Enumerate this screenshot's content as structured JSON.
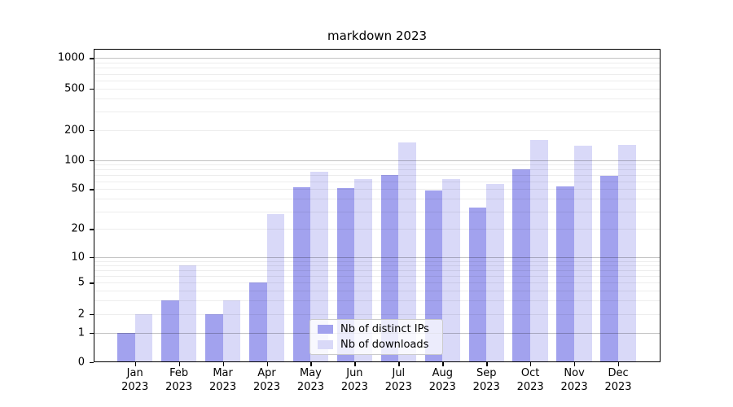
{
  "title": "markdown 2023",
  "chart_data": {
    "type": "bar",
    "title": "markdown 2023",
    "categories": [
      {
        "month": "Jan",
        "year": "2023"
      },
      {
        "month": "Feb",
        "year": "2023"
      },
      {
        "month": "Mar",
        "year": "2023"
      },
      {
        "month": "Apr",
        "year": "2023"
      },
      {
        "month": "May",
        "year": "2023"
      },
      {
        "month": "Jun",
        "year": "2023"
      },
      {
        "month": "Jul",
        "year": "2023"
      },
      {
        "month": "Aug",
        "year": "2023"
      },
      {
        "month": "Sep",
        "year": "2023"
      },
      {
        "month": "Oct",
        "year": "2023"
      },
      {
        "month": "Nov",
        "year": "2023"
      },
      {
        "month": "Dec",
        "year": "2023"
      }
    ],
    "series": [
      {
        "name": "Nb of distinct IPs",
        "color": "#a2a2ee",
        "values": [
          1,
          3,
          2,
          5,
          52,
          51,
          70,
          48,
          33,
          80,
          53,
          69
        ]
      },
      {
        "name": "Nb of downloads",
        "color": "#d9d9f8",
        "values": [
          2,
          8,
          3,
          28,
          75,
          64,
          150,
          63,
          56,
          158,
          139,
          142
        ]
      }
    ],
    "yticks": [
      "0",
      "1",
      "2",
      "5",
      "10",
      "20",
      "50",
      "100",
      "200",
      "500",
      "1000"
    ],
    "yscale": "symlog",
    "ylim": [
      0,
      1300
    ],
    "xlabel": "",
    "ylabel": "",
    "grid": true,
    "legend_position": "lower center"
  }
}
